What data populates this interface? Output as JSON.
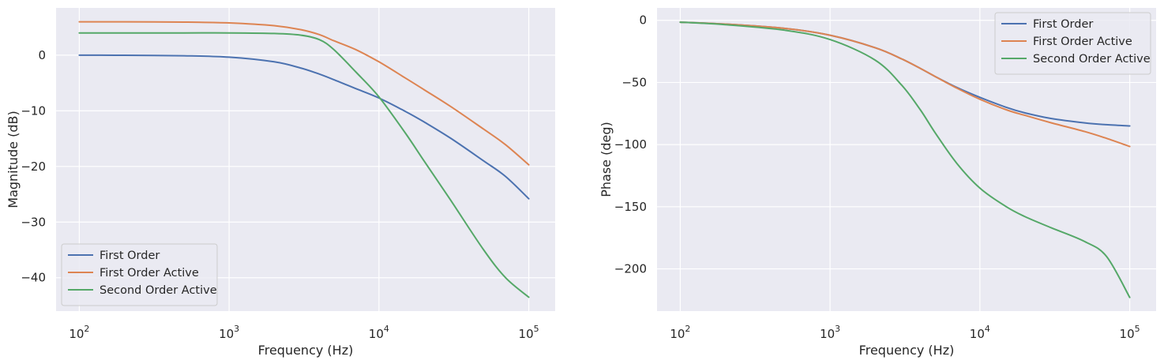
{
  "chart_data": [
    {
      "type": "line",
      "xscale": "log",
      "xlim": [
        70,
        150000
      ],
      "ylim": [
        -46,
        8.5
      ],
      "xticks": [
        100,
        1000,
        10000,
        100000
      ],
      "xtick_labels": [
        [
          "10",
          "2"
        ],
        [
          "10",
          "3"
        ],
        [
          "10",
          "4"
        ],
        [
          "10",
          "5"
        ]
      ],
      "yticks": [
        0,
        -10,
        -20,
        -30,
        -40
      ],
      "ytick_labels": [
        "0",
        "−10",
        "−20",
        "−30",
        "−40"
      ],
      "xlabel": "Frequency (Hz)",
      "ylabel": "Magnitude (dB)",
      "grid": true,
      "legend_position": "lower-left",
      "x": [
        100,
        200,
        500,
        1000,
        2000,
        3000,
        4000,
        5000,
        7000,
        10000,
        15000,
        20000,
        30000,
        50000,
        70000,
        100000
      ],
      "series": [
        {
          "name": "First Order",
          "color": "#4c72b0",
          "values": [
            0,
            -0.02,
            -0.1,
            -0.35,
            -1.2,
            -2.3,
            -3.4,
            -4.4,
            -6.0,
            -7.7,
            -10.1,
            -12.0,
            -14.9,
            -19.0,
            -21.8,
            -25.8
          ]
        },
        {
          "name": "First Order Active",
          "color": "#dd8452",
          "values": [
            6,
            6,
            5.95,
            5.8,
            5.3,
            4.6,
            3.7,
            2.6,
            1.0,
            -1.2,
            -4.1,
            -6.2,
            -9.2,
            -13.3,
            -16.1,
            -19.7
          ]
        },
        {
          "name": "Second Order Active",
          "color": "#55a868",
          "values": [
            4,
            4,
            4,
            4,
            3.9,
            3.6,
            2.8,
            1.0,
            -3.0,
            -7.5,
            -14.0,
            -19.0,
            -26.0,
            -35.0,
            -40.0,
            -43.5
          ]
        }
      ]
    },
    {
      "type": "line",
      "xscale": "log",
      "xlim": [
        70,
        150000
      ],
      "ylim": [
        -234,
        10
      ],
      "xticks": [
        100,
        1000,
        10000,
        100000
      ],
      "xtick_labels": [
        [
          "10",
          "2"
        ],
        [
          "10",
          "3"
        ],
        [
          "10",
          "4"
        ],
        [
          "10",
          "5"
        ]
      ],
      "yticks": [
        0,
        -50,
        -100,
        -150,
        -200
      ],
      "ytick_labels": [
        "0",
        "−50",
        "−100",
        "−150",
        "−200"
      ],
      "xlabel": "Frequency (Hz)",
      "ylabel": "Phase (deg)",
      "grid": true,
      "legend_position": "upper-right",
      "x": [
        100,
        200,
        500,
        1000,
        2000,
        3000,
        4000,
        5000,
        7000,
        10000,
        15000,
        20000,
        30000,
        50000,
        70000,
        100000
      ],
      "series": [
        {
          "name": "First Order",
          "color": "#4c72b0",
          "values": [
            -1.5,
            -3.0,
            -6.5,
            -12.0,
            -22.0,
            -31.0,
            -38.7,
            -45.0,
            -54.0,
            -62.0,
            -70.0,
            -74.5,
            -79.0,
            -82.5,
            -84.0,
            -85.0
          ]
        },
        {
          "name": "First Order Active",
          "color": "#dd8452",
          "values": [
            -1.5,
            -3.0,
            -6.5,
            -12.0,
            -22.0,
            -31.0,
            -38.7,
            -45.0,
            -54.5,
            -63.5,
            -72.0,
            -76.5,
            -82.5,
            -89.5,
            -95.0,
            -101.5
          ]
        },
        {
          "name": "Second Order Active",
          "color": "#55a868",
          "values": [
            -1.5,
            -3.5,
            -8.0,
            -15.5,
            -32.0,
            -52.0,
            -72.0,
            -90.0,
            -115.0,
            -135.0,
            -150.0,
            -158.0,
            -167.0,
            -178.0,
            -190.0,
            -223.0
          ]
        }
      ]
    }
  ]
}
